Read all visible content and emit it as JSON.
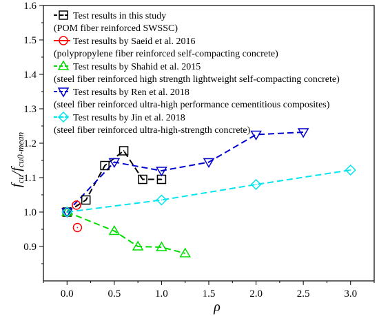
{
  "chart_data": {
    "type": "scatter",
    "title": "",
    "xlabel": "ρ",
    "ylabel_main": "f",
    "ylabel_sub_num": "cu",
    "ylabel_slash": "/f",
    "ylabel_sub_den": "cu0-mean",
    "xlim": [
      -0.25,
      3.25
    ],
    "ylim": [
      0.8,
      1.6
    ],
    "x_ticks": [
      "0.0",
      "0.5",
      "1.0",
      "1.5",
      "2.0",
      "2.5",
      "3.0"
    ],
    "y_ticks": [
      "0.9",
      "1.0",
      "1.1",
      "1.2",
      "1.3",
      "1.4",
      "1.5",
      "1.6"
    ],
    "grid": false,
    "legend_position": "top-left",
    "series": [
      {
        "name": "Test results in this study",
        "note": "(POM fiber reinforced SWSSC)",
        "color": "#000000",
        "marker": "square",
        "line": "dashed",
        "x": [
          0.0,
          0.2,
          0.4,
          0.6,
          0.8,
          1.0
        ],
        "y": [
          1.0,
          1.035,
          1.135,
          1.178,
          1.095,
          1.095
        ]
      },
      {
        "name": "Test results by Saeid et al.  2016",
        "note": "(polypropylene fiber reinforced self-compacting concrete)",
        "color": "#ff0000",
        "marker": "circle",
        "line": "none",
        "x": [
          0.0,
          0.1,
          0.11
        ],
        "y": [
          1.0,
          1.02,
          0.955
        ]
      },
      {
        "name": "Test results by Shahid et al.  2015",
        "note": "(steel fiber reinforced high strength lightweight self-compacting concrete)",
        "color": "#00dd00",
        "marker": "triangle-up",
        "line": "dashed",
        "x": [
          0.0,
          0.5,
          0.75,
          1.0,
          1.25
        ],
        "y": [
          1.0,
          0.945,
          0.9,
          0.898,
          0.88
        ]
      },
      {
        "name": "Test results by Ren et al.  2018",
        "note": "(steel fiber reinforced ultra-high performance cementitious composites)",
        "color": "#0000cc",
        "marker": "triangle-down",
        "line": "dashed",
        "x": [
          0.0,
          0.5,
          1.0,
          1.5,
          2.0,
          2.5
        ],
        "y": [
          1.0,
          1.145,
          1.12,
          1.145,
          1.225,
          1.232
        ]
      },
      {
        "name": "Test results by Jin et al.  2018",
        "note": "(steel fiber reinforced ultra-high-strength concrete)",
        "color": "#00e5ee",
        "marker": "diamond",
        "line": "dashed",
        "x": [
          0.0,
          1.0,
          2.0,
          3.0
        ],
        "y": [
          1.0,
          1.035,
          1.08,
          1.122
        ]
      }
    ]
  }
}
